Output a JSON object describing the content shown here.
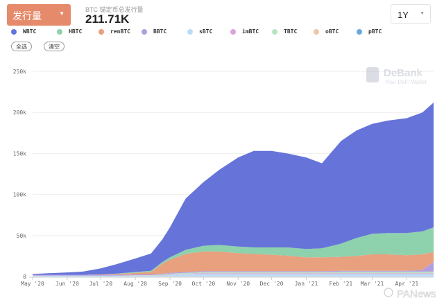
{
  "header": {
    "metric_select": "发行量",
    "subtitle": "BTC 锚定币总发行量",
    "total": "211.71K",
    "range_select": "1Y"
  },
  "buttons": {
    "select_all": "全选",
    "clear": "清空"
  },
  "watermarks": {
    "debank": "DeBank",
    "debank_tagline": "Your DeFi Wallet",
    "panews": "PANews"
  },
  "chart_data": {
    "type": "area",
    "stacked": true,
    "title": "",
    "xlabel": "",
    "ylabel": "",
    "ylim": [
      0,
      250000
    ],
    "yticks": [
      "0",
      "50k",
      "100k",
      "150k",
      "200k",
      "250k"
    ],
    "ytick_values": [
      0,
      50000,
      100000,
      150000,
      200000,
      250000
    ],
    "xticks": [
      "May '20",
      "Jun '20",
      "Jul '20",
      "Aug '20",
      "Sep '20",
      "Oct '20",
      "Nov '20",
      "Dec '20",
      "Jan '21",
      "Feb '21",
      "Mar '21",
      "Apr '21"
    ],
    "xtick_dates": [
      "2020-05-01",
      "2020-06-01",
      "2020-07-01",
      "2020-08-01",
      "2020-09-01",
      "2020-10-01",
      "2020-11-01",
      "2020-12-01",
      "2021-01-01",
      "2021-02-01",
      "2021-03-01",
      "2021-04-01"
    ],
    "grid": "horizontal",
    "legend_placement": "top",
    "x": [
      "2020-05-01",
      "2020-05-15",
      "2020-06-01",
      "2020-06-15",
      "2020-07-01",
      "2020-07-15",
      "2020-08-01",
      "2020-08-15",
      "2020-08-25",
      "2020-09-01",
      "2020-09-15",
      "2020-10-01",
      "2020-10-15",
      "2020-11-01",
      "2020-11-15",
      "2020-12-01",
      "2020-12-15",
      "2021-01-01",
      "2021-01-15",
      "2021-02-01",
      "2021-02-15",
      "2021-03-01",
      "2021-03-15",
      "2021-04-01",
      "2021-04-15",
      "2021-04-25"
    ],
    "series": [
      {
        "name": "sBTC",
        "color": "#bcdcf5",
        "values": [
          1000,
          1000,
          1000,
          1000,
          1000,
          1000,
          1000,
          1000,
          1000,
          2000,
          3000,
          3000,
          3000,
          3000,
          3000,
          3000,
          3000,
          3000,
          3000,
          3000,
          3000,
          3000,
          3000,
          3000,
          3000,
          3000
        ]
      },
      {
        "name": "imBTC",
        "color": "#d9a3db",
        "values": [
          0,
          0,
          0,
          0,
          0,
          0,
          0,
          0,
          500,
          500,
          500,
          1000,
          1000,
          1000,
          1000,
          1000,
          1000,
          1000,
          1000,
          1000,
          1000,
          1000,
          1000,
          1000,
          1000,
          1000
        ]
      },
      {
        "name": "TBTC",
        "color": "#b9e3bf",
        "values": [
          0,
          0,
          0,
          0,
          0,
          0,
          500,
          500,
          1000,
          1000,
          1000,
          1000,
          1000,
          1000,
          1000,
          1000,
          1000,
          1000,
          1000,
          1500,
          1500,
          1500,
          1500,
          1500,
          1500,
          1500
        ]
      },
      {
        "name": "oBTC",
        "color": "#f0c7a6",
        "values": [
          0,
          0,
          0,
          0,
          0,
          0,
          0,
          0,
          0,
          0,
          0,
          300,
          300,
          300,
          300,
          300,
          300,
          300,
          300,
          300,
          300,
          300,
          300,
          300,
          300,
          300
        ]
      },
      {
        "name": "pBTC",
        "color": "#6aa7e0",
        "values": [
          0,
          0,
          0,
          0,
          0,
          0,
          0,
          0,
          0,
          0,
          0,
          200,
          200,
          200,
          200,
          200,
          200,
          200,
          200,
          200,
          200,
          200,
          200,
          200,
          200,
          200
        ]
      },
      {
        "name": "BBTC",
        "color": "#b19ee0",
        "values": [
          1000,
          1000,
          1000,
          1000,
          1000,
          1000,
          1000,
          1000,
          1000,
          1000,
          1000,
          1000,
          1000,
          1000,
          1000,
          1000,
          1000,
          1000,
          1000,
          1000,
          1000,
          1000,
          1000,
          1000,
          2000,
          12000
        ]
      },
      {
        "name": "renBTC",
        "color": "#e8a07e",
        "values": [
          0,
          0,
          0,
          0,
          500,
          1000,
          2000,
          3000,
          12000,
          16000,
          22000,
          24000,
          24000,
          22000,
          21000,
          20000,
          19000,
          17000,
          17000,
          17000,
          18000,
          20000,
          20000,
          19000,
          19000,
          12000
        ]
      },
      {
        "name": "HBTC",
        "color": "#8ed1ad",
        "values": [
          0,
          0,
          0,
          0,
          0,
          500,
          1000,
          1500,
          2000,
          3000,
          5000,
          7000,
          8000,
          8000,
          8000,
          9000,
          10000,
          10000,
          11000,
          16000,
          22000,
          25000,
          26000,
          27000,
          28000,
          30000
        ]
      },
      {
        "name": "WBTC",
        "color": "#6674d9",
        "values": [
          1000,
          2000,
          3000,
          4000,
          7500,
          11500,
          16500,
          21000,
          27500,
          36500,
          62500,
          77500,
          91500,
          108500,
          117500,
          117500,
          114500,
          111500,
          103500,
          125000,
          131000,
          134000,
          137000,
          140000,
          145000,
          152000
        ]
      }
    ],
    "legend_order": [
      "WBTC",
      "HBTC",
      "renBTC",
      "BBTC",
      "sBTC",
      "imBTC",
      "TBTC",
      "oBTC",
      "pBTC"
    ]
  }
}
